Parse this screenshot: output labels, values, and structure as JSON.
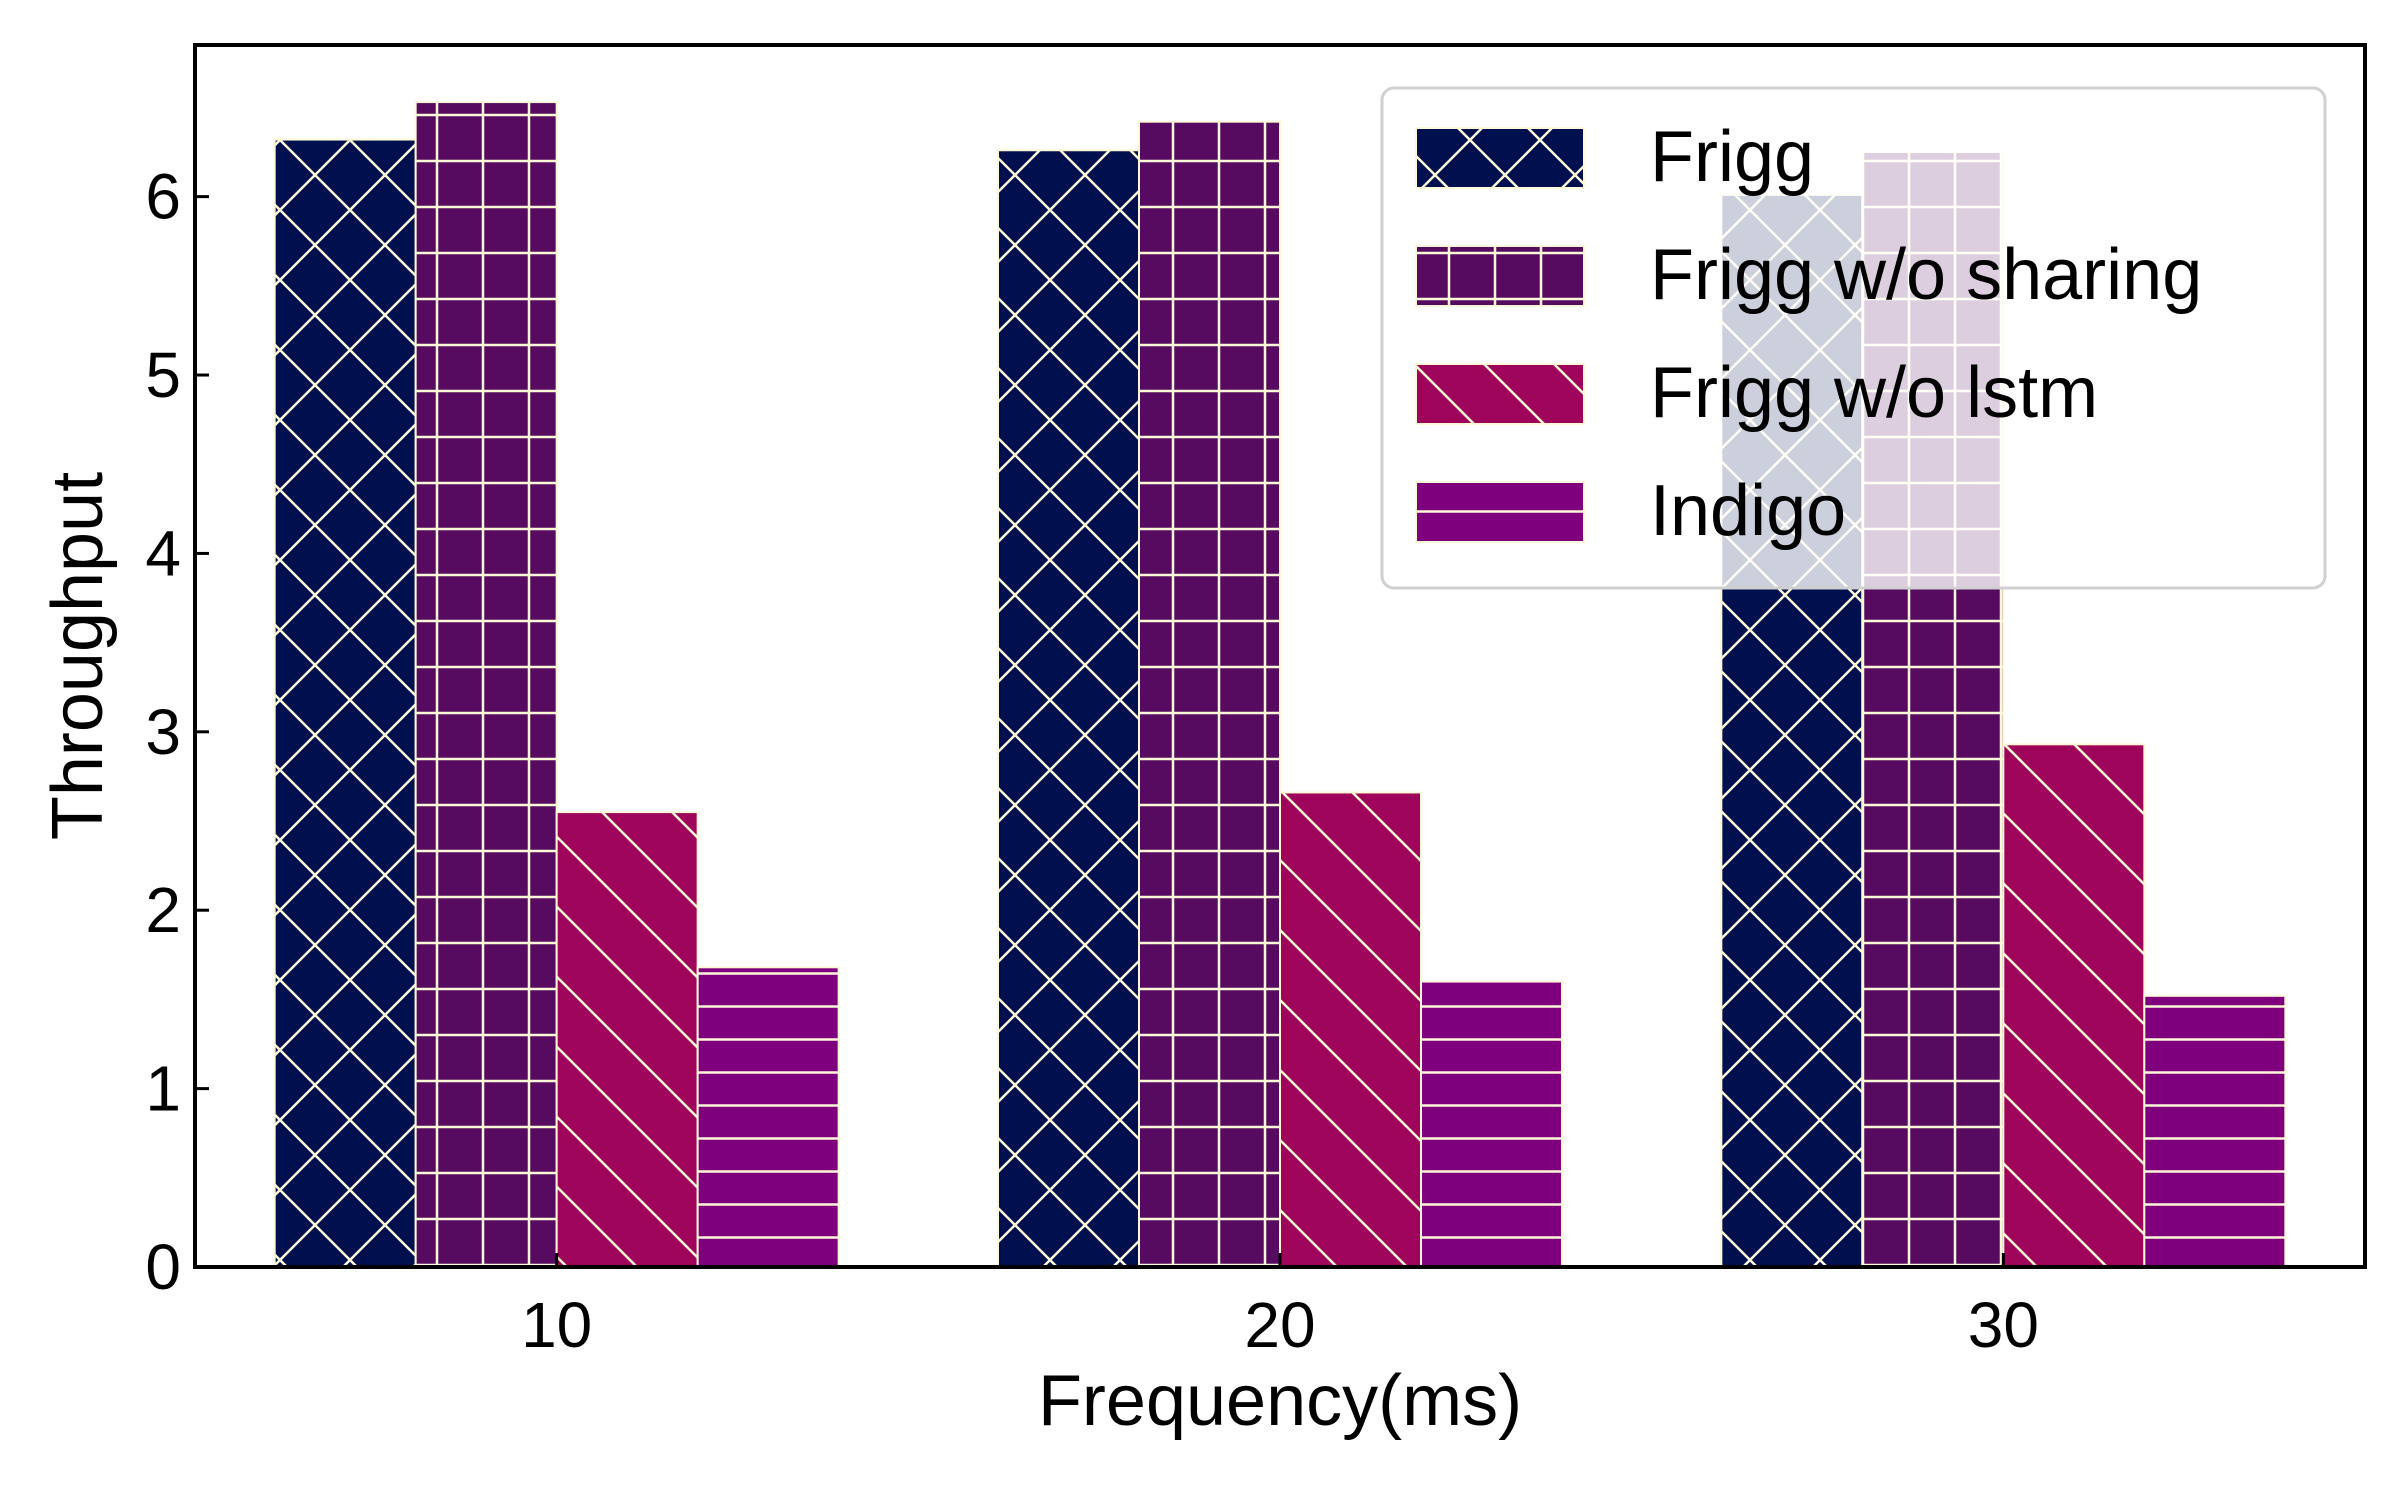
{
  "chart_data": {
    "type": "bar",
    "title": "",
    "xlabel": "Frequency(ms)",
    "ylabel": "Throughput",
    "categories": [
      "10",
      "20",
      "30"
    ],
    "ylim": [
      0,
      6.85
    ],
    "yticks": [
      0,
      1,
      2,
      3,
      4,
      5,
      6
    ],
    "grid": false,
    "legend_position": "top-right",
    "series": [
      {
        "name": "Frigg",
        "values": [
          6.32,
          6.26,
          6.01
        ],
        "color": "#00104f",
        "hatch": "x"
      },
      {
        "name": "Frigg w/o sharing",
        "values": [
          6.53,
          6.42,
          6.25
        ],
        "color": "#560a60",
        "hatch": "+"
      },
      {
        "name": "Frigg w/o lstm",
        "values": [
          2.55,
          2.66,
          2.93
        ],
        "color": "#9e0459",
        "hatch": "\\"
      },
      {
        "name": "Indigo",
        "values": [
          1.68,
          1.6,
          1.52
        ],
        "color": "#7e007d",
        "hatch": "-"
      }
    ],
    "hatch_color": "#fdf8d8"
  }
}
